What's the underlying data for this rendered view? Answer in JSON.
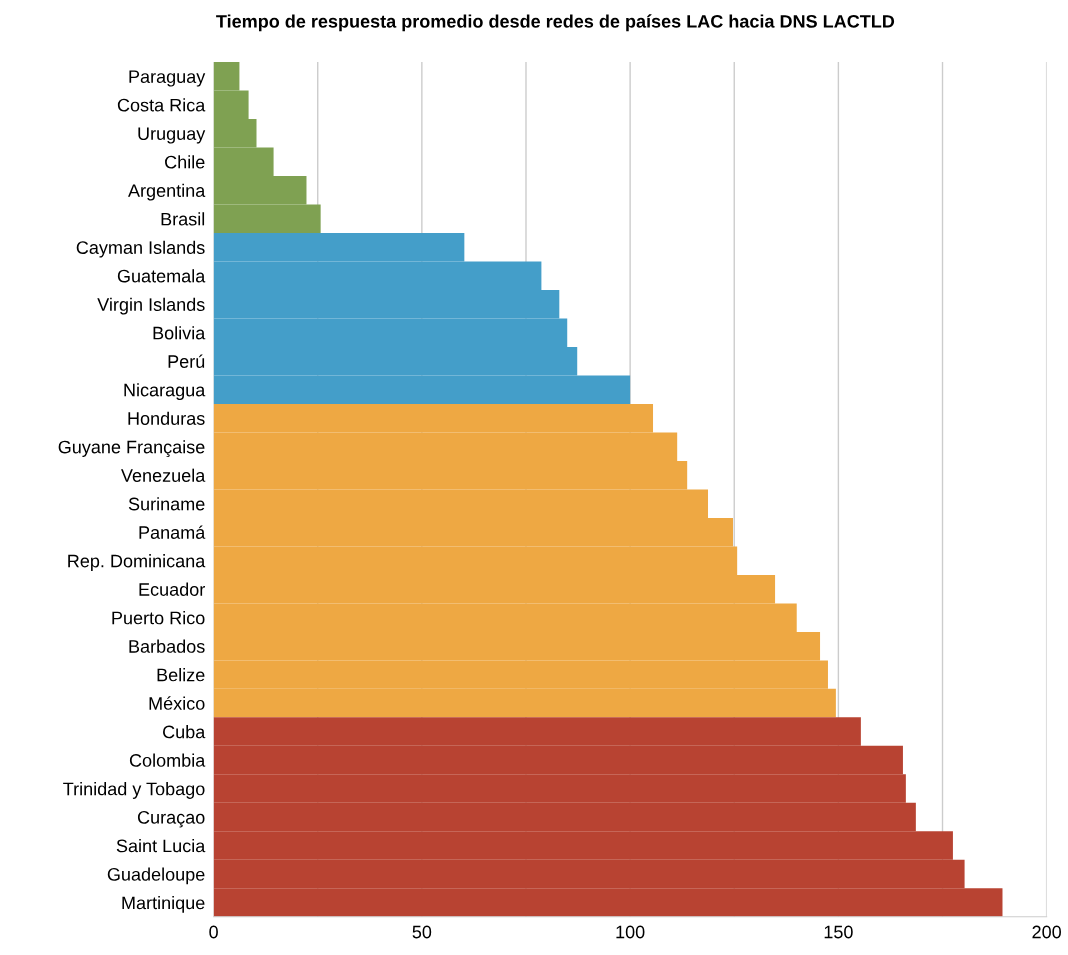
{
  "chart_data": {
    "type": "bar",
    "orientation": "horizontal",
    "title": "Tiempo de respuesta promedio desde redes de países LAC hacia DNS LACTLD",
    "categories": [
      "Paraguay",
      "Costa Rica",
      "Uruguay",
      "Chile",
      "Argentina",
      "Brasil",
      "Cayman Islands",
      "Guatemala",
      "Virgin Islands",
      "Bolivia",
      "Perú",
      "Nicaragua",
      "Honduras",
      "Guyane Française",
      "Venezuela",
      "Suriname",
      "Panamá",
      "Rep. Dominicana",
      "Ecuador",
      "Puerto Rico",
      "Barbados",
      "Belize",
      "México",
      "Cuba",
      "Colombia",
      "Trinidad y Tobago",
      "Curaçao",
      "Saint Lucia",
      "Guadeloupe",
      "Martinique"
    ],
    "values": [
      6.2,
      8.4,
      10.3,
      14.4,
      22.3,
      25.7,
      60.2,
      78.7,
      83,
      84.9,
      87.3,
      100,
      105.5,
      111.3,
      113.7,
      118.7,
      124.7,
      125.7,
      134.8,
      140,
      145.6,
      147.5,
      149.4,
      155.4,
      165.5,
      166.2,
      168.6,
      177.5,
      180.3,
      189.4
    ],
    "colors": [
      "#7fa152",
      "#7fa152",
      "#7fa152",
      "#7fa152",
      "#7fa152",
      "#7fa152",
      "#449ec9",
      "#449ec9",
      "#449ec9",
      "#449ec9",
      "#449ec9",
      "#449ec9",
      "#eea843",
      "#eea843",
      "#eea843",
      "#eea843",
      "#eea843",
      "#eea843",
      "#eea843",
      "#eea843",
      "#eea843",
      "#eea843",
      "#eea843",
      "#b84332",
      "#b84332",
      "#b84332",
      "#b84332",
      "#b84332",
      "#b84332",
      "#b84332"
    ],
    "xlim": [
      0,
      200
    ],
    "xticks": [
      0,
      {
        "value": 25,
        "label": null
      },
      50,
      {
        "value": 75,
        "label": null
      },
      100,
      {
        "value": 125,
        "label": null
      },
      150,
      {
        "value": 175,
        "label": null
      },
      200
    ],
    "grid": "x",
    "legend": false
  }
}
